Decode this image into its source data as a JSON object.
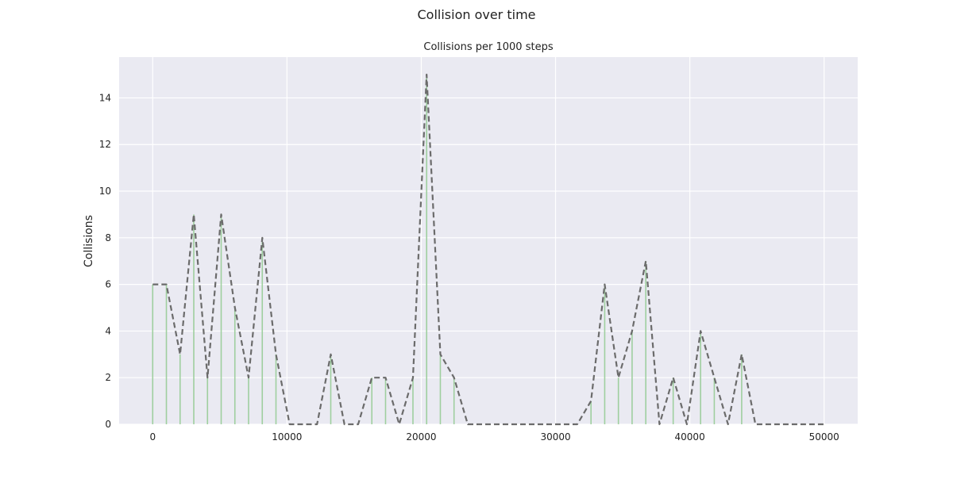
{
  "chart_data": {
    "type": "line",
    "suptitle": "Collision over time",
    "title": "Collisions per 1000 steps",
    "xlabel": "",
    "ylabel": "Collisions",
    "xlim": [
      -2500,
      52500
    ],
    "ylim": [
      0,
      15.75
    ],
    "xticks": [
      0,
      10000,
      20000,
      30000,
      40000,
      50000
    ],
    "xtick_labels": [
      "0",
      "10000",
      "20000",
      "30000",
      "40000",
      "50000"
    ],
    "yticks": [
      0,
      2,
      4,
      6,
      8,
      10,
      12,
      14
    ],
    "ytick_labels": [
      "0",
      "2",
      "4",
      "6",
      "8",
      "10",
      "12",
      "14"
    ],
    "grid": true,
    "legend": "none",
    "x": [
      0,
      1020,
      2040,
      3060,
      4080,
      5100,
      6120,
      7140,
      8160,
      9180,
      10200,
      11220,
      12240,
      13260,
      14280,
      15300,
      16320,
      17340,
      18360,
      19380,
      20400,
      21420,
      22440,
      23460,
      24480,
      25500,
      26520,
      27540,
      28560,
      29580,
      30600,
      31620,
      32640,
      33660,
      34680,
      35700,
      36720,
      37740,
      38760,
      39780,
      40800,
      41820,
      42840,
      43860,
      44880,
      45900,
      46920,
      47940,
      48960,
      50000
    ],
    "series": [
      {
        "values": [
          6,
          6,
          3,
          9,
          2,
          9,
          5,
          2,
          8,
          3,
          0,
          0,
          0,
          3,
          0,
          0,
          2,
          2,
          0,
          2,
          15,
          3,
          2,
          0,
          0,
          0,
          0,
          0,
          0,
          0,
          0,
          0,
          1,
          6,
          2,
          4,
          7,
          0,
          2,
          0,
          4,
          2,
          0,
          3,
          0,
          0,
          0,
          0,
          0,
          0
        ]
      }
    ],
    "colors": {
      "background": "#eaeaf2",
      "grid": "#ffffff",
      "line": "#6b6b6b",
      "stem": "#9fcf9f"
    }
  }
}
